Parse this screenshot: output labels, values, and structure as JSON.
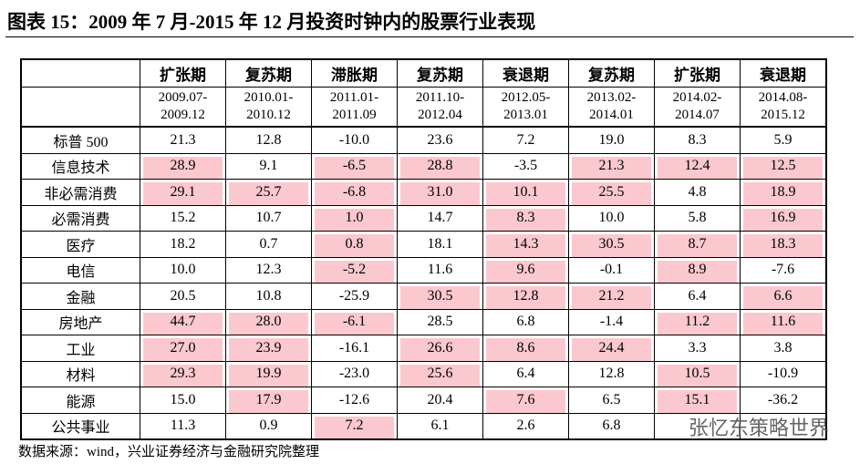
{
  "header": {
    "title": "图表 15：2009 年 7 月-2015 年 12 月投资时钟内的股票行业表现"
  },
  "table": {
    "phases": [
      "扩张期",
      "复苏期",
      "滞胀期",
      "复苏期",
      "衰退期",
      "复苏期",
      "扩张期",
      "衰退期"
    ],
    "periods": [
      [
        "2009.07-",
        "2009.12"
      ],
      [
        "2010.01-",
        "2010.12"
      ],
      [
        "2011.01-",
        "2011.09"
      ],
      [
        "2011.10-",
        "2012.04"
      ],
      [
        "2012.05-",
        "2013.01"
      ],
      [
        "2013.02-",
        "2014.01"
      ],
      [
        "2014.02-",
        "2014.07"
      ],
      [
        "2014.08-",
        "2015.12"
      ]
    ],
    "row_labels": [
      "标普 500",
      "信息技术",
      "非必需消费",
      "必需消费",
      "医疗",
      "电信",
      "金融",
      "房地产",
      "工业",
      "材料",
      "能源",
      "公共事业"
    ],
    "rows": [
      [
        "21.3",
        "12.8",
        "-10.0",
        "23.6",
        "7.2",
        "19.0",
        "8.3",
        "5.9"
      ],
      [
        "28.9",
        "9.1",
        "-6.5",
        "28.8",
        "-3.5",
        "21.3",
        "12.4",
        "12.5"
      ],
      [
        "29.1",
        "25.7",
        "-6.8",
        "31.0",
        "10.1",
        "25.5",
        "4.8",
        "18.9"
      ],
      [
        "15.2",
        "10.7",
        "1.0",
        "14.7",
        "8.3",
        "10.0",
        "5.8",
        "16.9"
      ],
      [
        "18.2",
        "0.7",
        "0.8",
        "18.1",
        "14.3",
        "30.5",
        "8.7",
        "18.3"
      ],
      [
        "10.0",
        "12.3",
        "-5.2",
        "11.6",
        "9.6",
        "-0.1",
        "8.9",
        "-7.6"
      ],
      [
        "20.5",
        "10.8",
        "-25.9",
        "30.5",
        "12.8",
        "21.2",
        "6.4",
        "6.6"
      ],
      [
        "44.7",
        "28.0",
        "-6.1",
        "28.5",
        "6.8",
        "-1.4",
        "11.2",
        "11.6"
      ],
      [
        "27.0",
        "23.9",
        "-16.1",
        "26.6",
        "8.6",
        "24.4",
        "3.3",
        "3.8"
      ],
      [
        "29.3",
        "19.9",
        "-23.0",
        "25.6",
        "6.4",
        "12.8",
        "10.5",
        "-10.9"
      ],
      [
        "15.0",
        "17.9",
        "-12.6",
        "20.4",
        "7.6",
        "6.5",
        "15.1",
        "-36.2"
      ],
      [
        "11.3",
        "0.9",
        "7.2",
        "6.1",
        "2.6",
        "6.8",
        null,
        null
      ]
    ],
    "highlight": [
      [
        false,
        false,
        false,
        false,
        false,
        false,
        false,
        false
      ],
      [
        true,
        false,
        true,
        true,
        false,
        true,
        true,
        true
      ],
      [
        true,
        true,
        true,
        true,
        true,
        true,
        false,
        true
      ],
      [
        false,
        false,
        true,
        false,
        true,
        false,
        false,
        true
      ],
      [
        false,
        false,
        true,
        false,
        true,
        true,
        true,
        true
      ],
      [
        false,
        false,
        true,
        false,
        true,
        false,
        true,
        false
      ],
      [
        false,
        false,
        false,
        true,
        true,
        true,
        false,
        true
      ],
      [
        true,
        true,
        true,
        false,
        false,
        false,
        true,
        true
      ],
      [
        true,
        true,
        false,
        true,
        true,
        true,
        false,
        false
      ],
      [
        true,
        true,
        false,
        true,
        false,
        false,
        true,
        false
      ],
      [
        false,
        true,
        false,
        false,
        true,
        false,
        true,
        false
      ],
      [
        false,
        false,
        true,
        false,
        false,
        false,
        false,
        false
      ]
    ],
    "highlight_color": "#fbc8cf"
  },
  "watermark": "张忆东策略世界",
  "footer": {
    "source": "数据来源：wind，兴业证券经济与金融研究院整理"
  }
}
